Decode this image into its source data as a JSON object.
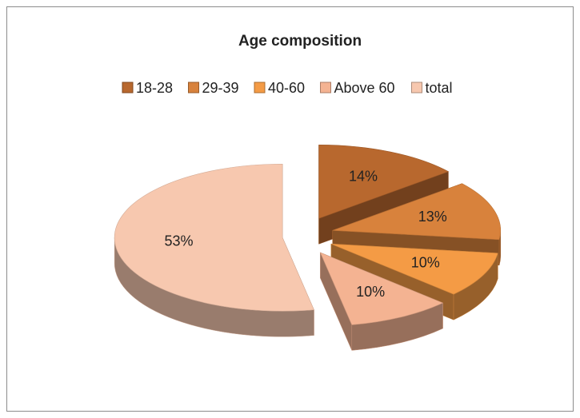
{
  "chart_data": {
    "type": "pie",
    "title": "Age composition",
    "categories": [
      "18-28",
      "29-39",
      "40-60",
      "Above 60",
      "total"
    ],
    "values": [
      14,
      13,
      10,
      10,
      53
    ],
    "value_labels": [
      "14%",
      "13%",
      "10%",
      "10%",
      "53%"
    ],
    "colors": [
      "#b8682e",
      "#d8823c",
      "#f49b45",
      "#f4b392",
      "#f7c8af"
    ],
    "legend": "top"
  }
}
